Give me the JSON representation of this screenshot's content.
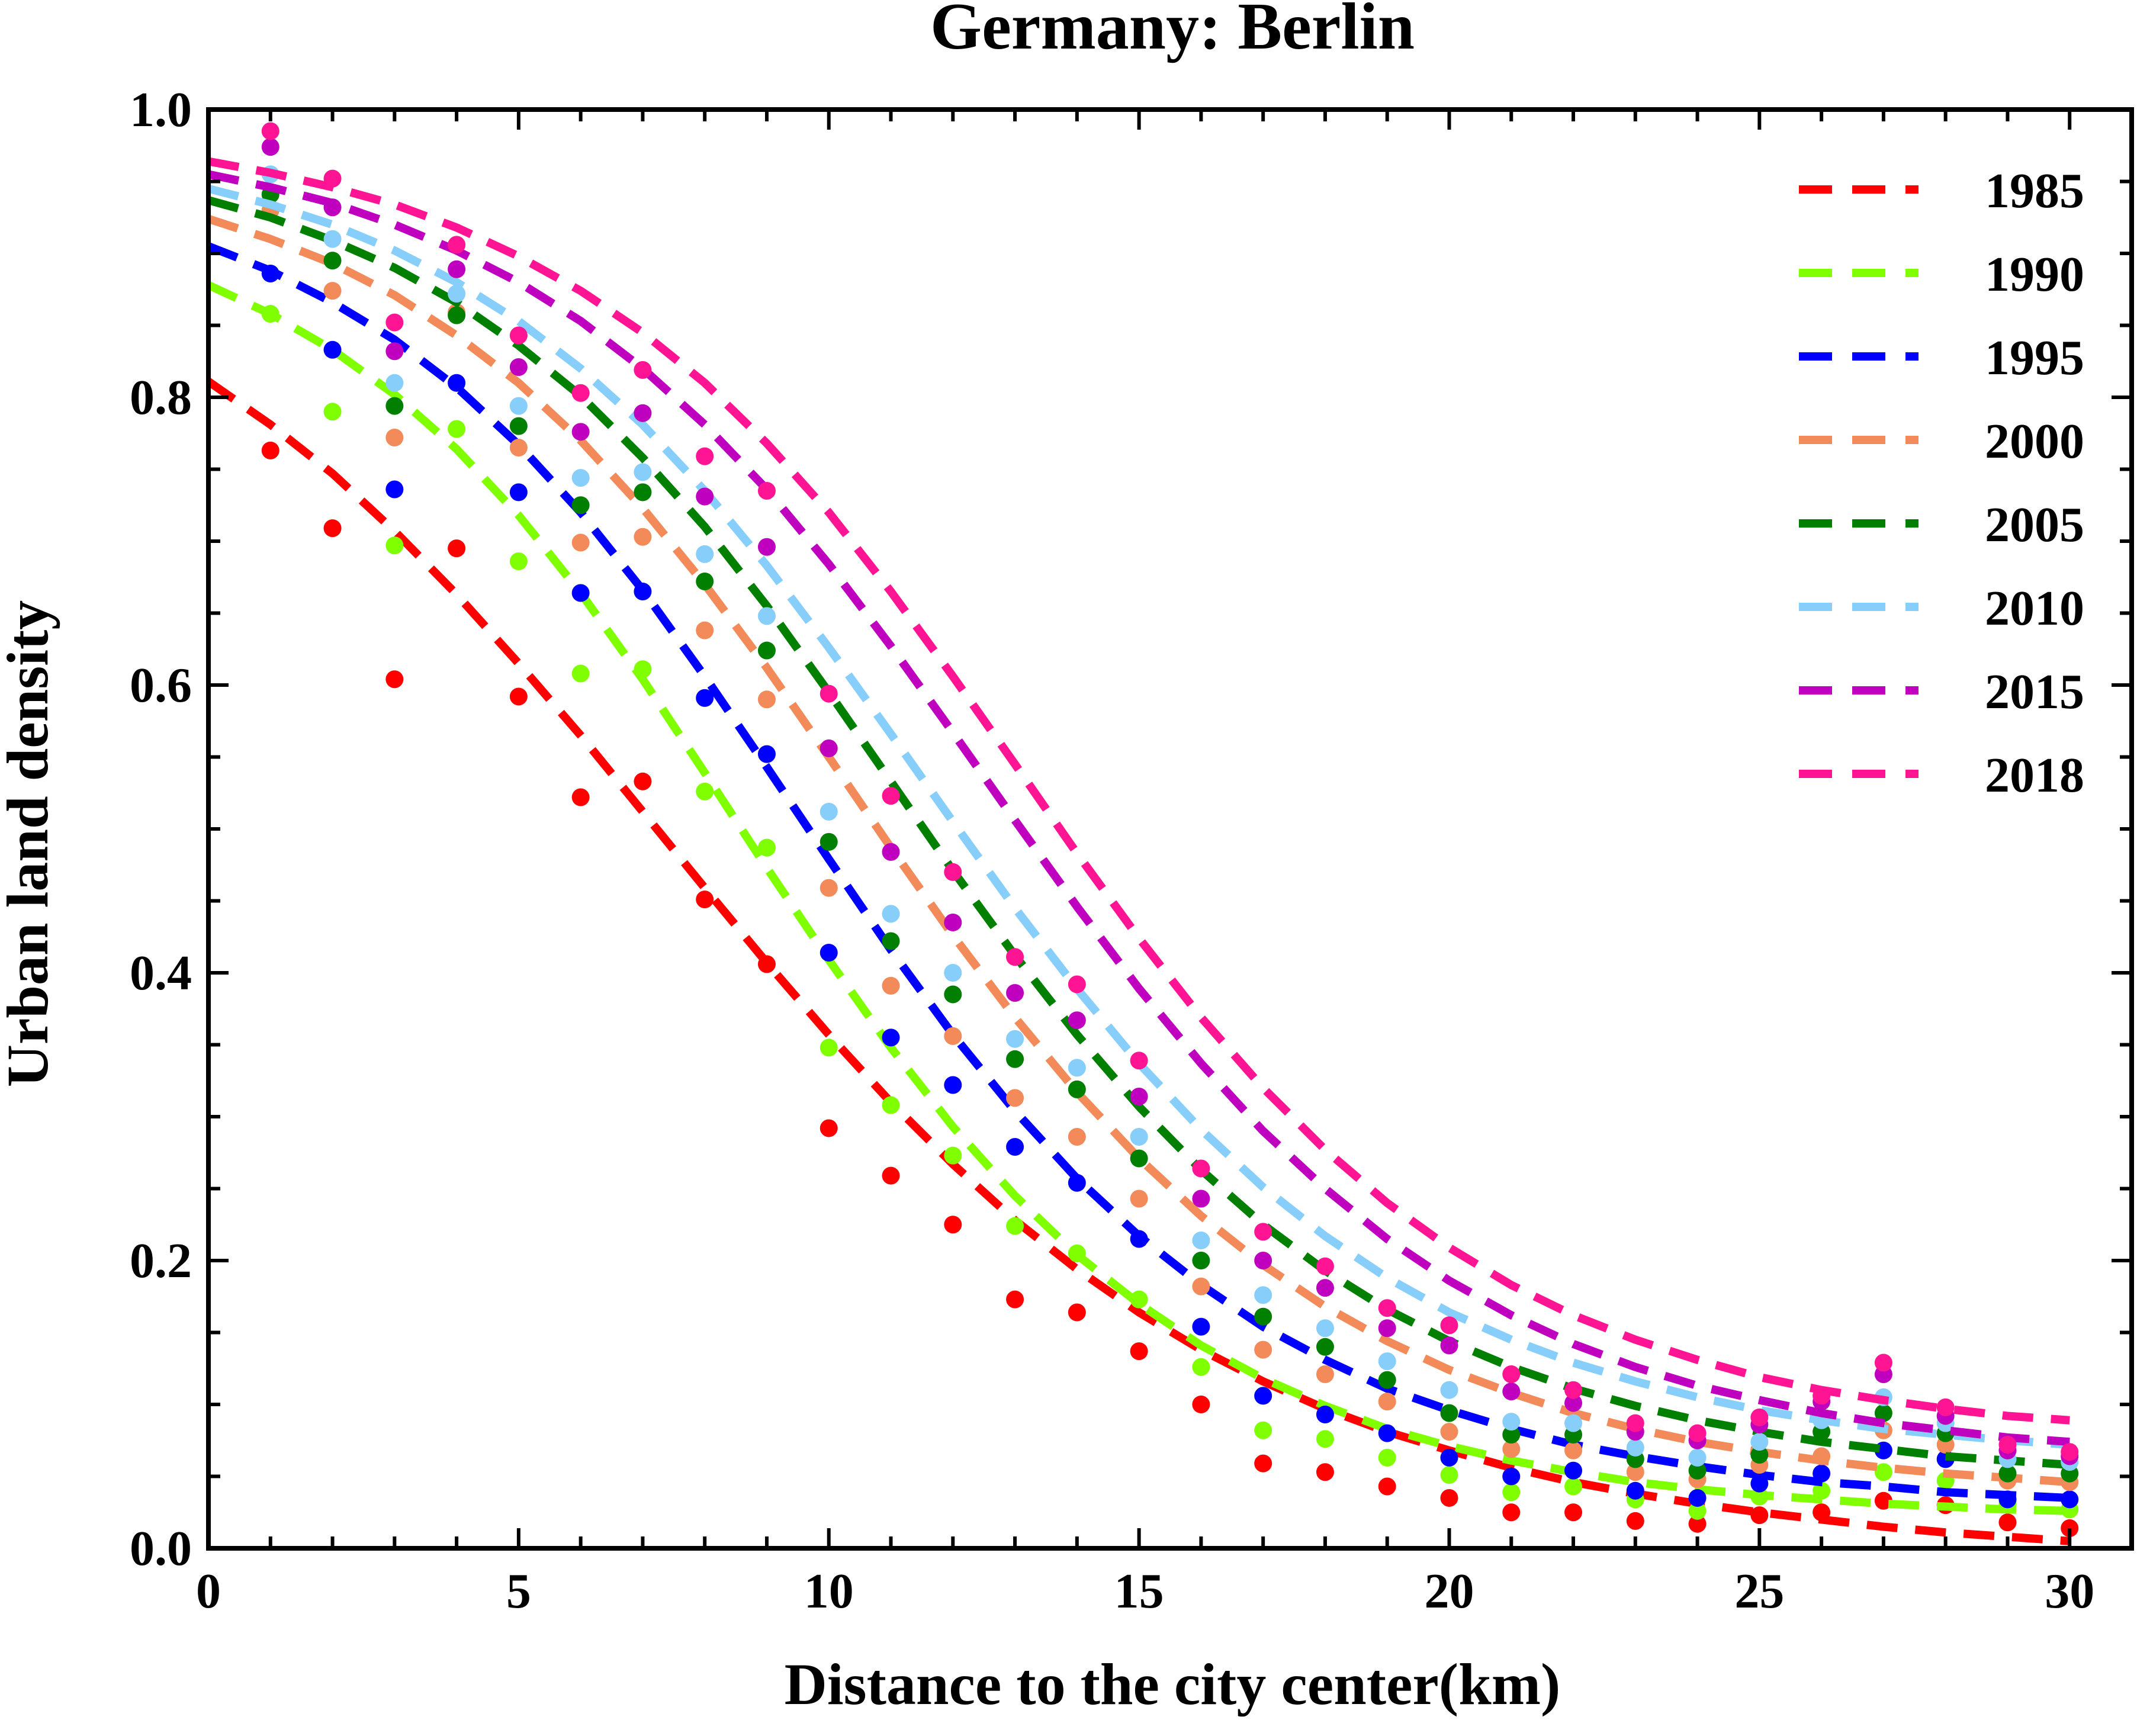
{
  "chart_data": {
    "type": "scatter",
    "title": "Germany: Berlin",
    "xlabel": "Distance to the city center(km)",
    "ylabel": "Urban land density",
    "xlim": [
      0,
      31
    ],
    "ylim": [
      0,
      1.0
    ],
    "xticks": [
      0,
      5,
      10,
      15,
      20,
      25,
      30
    ],
    "xtick_labels": [
      "0",
      "5",
      "10",
      "15",
      "20",
      "25",
      "30"
    ],
    "yticks": [
      0.0,
      0.2,
      0.4,
      0.6,
      0.8,
      1.0
    ],
    "ytick_labels": [
      "0.0",
      "0.2",
      "0.4",
      "0.6",
      "0.8",
      "1.0"
    ],
    "grid": false,
    "legend_position": "top-right",
    "x": [
      1,
      2,
      3,
      4,
      5,
      6,
      7,
      8,
      9,
      10,
      11,
      12,
      13,
      14,
      15,
      16,
      17,
      18,
      19,
      20,
      21,
      22,
      23,
      24,
      25,
      26,
      27,
      28,
      29,
      30
    ],
    "series": [
      {
        "name": "1985",
        "color": "#ff0000",
        "points": [
          0.763,
          0.709,
          0.604,
          0.695,
          0.592,
          0.522,
          0.533,
          0.451,
          0.406,
          0.292,
          0.259,
          0.225,
          0.173,
          0.164,
          0.137,
          0.1,
          0.059,
          0.053,
          0.043,
          0.035,
          0.025,
          0.025,
          0.019,
          0.017,
          0.023,
          0.025,
          0.033,
          0.03,
          0.018,
          0.014
        ],
        "fit": [
          0.811,
          0.781,
          0.747,
          0.707,
          0.663,
          0.615,
          0.565,
          0.512,
          0.459,
          0.407,
          0.357,
          0.31,
          0.267,
          0.228,
          0.194,
          0.164,
          0.138,
          0.116,
          0.097,
          0.081,
          0.068,
          0.056,
          0.046,
          0.038,
          0.031,
          0.025,
          0.02,
          0.015,
          0.011,
          0.008,
          0.005
        ]
      },
      {
        "name": "1990",
        "color": "#80ff00",
        "points": [
          0.858,
          0.79,
          0.697,
          0.778,
          0.686,
          0.608,
          0.611,
          0.526,
          0.487,
          0.348,
          0.308,
          0.273,
          0.224,
          0.205,
          0.173,
          0.126,
          0.082,
          0.076,
          0.063,
          0.051,
          0.039,
          0.043,
          0.034,
          0.026,
          0.036,
          0.04,
          0.053,
          0.047,
          0.031,
          0.027
        ],
        "fit": [
          0.878,
          0.858,
          0.833,
          0.802,
          0.764,
          0.718,
          0.664,
          0.604,
          0.539,
          0.473,
          0.409,
          0.348,
          0.293,
          0.245,
          0.204,
          0.17,
          0.141,
          0.118,
          0.099,
          0.083,
          0.071,
          0.061,
          0.053,
          0.046,
          0.041,
          0.037,
          0.034,
          0.031,
          0.029,
          0.027,
          0.026
        ]
      },
      {
        "name": "1995",
        "color": "#0000ff",
        "points": [
          0.886,
          0.833,
          0.736,
          0.81,
          0.734,
          0.664,
          0.665,
          0.591,
          0.552,
          0.414,
          0.355,
          0.322,
          0.279,
          0.254,
          0.215,
          0.154,
          0.106,
          0.093,
          0.08,
          0.063,
          0.05,
          0.054,
          0.04,
          0.035,
          0.045,
          0.052,
          0.068,
          0.062,
          0.034,
          0.034
        ],
        "fit": [
          0.905,
          0.888,
          0.866,
          0.84,
          0.807,
          0.767,
          0.72,
          0.666,
          0.606,
          0.543,
          0.479,
          0.416,
          0.357,
          0.304,
          0.257,
          0.217,
          0.183,
          0.154,
          0.131,
          0.111,
          0.096,
          0.083,
          0.072,
          0.064,
          0.057,
          0.051,
          0.046,
          0.043,
          0.039,
          0.037,
          0.035
        ]
      },
      {
        "name": "2000",
        "color": "#f28a5a",
        "points": [
          0.93,
          0.874,
          0.772,
          0.859,
          0.765,
          0.699,
          0.703,
          0.638,
          0.59,
          0.459,
          0.391,
          0.356,
          0.313,
          0.286,
          0.243,
          0.182,
          0.138,
          0.121,
          0.102,
          0.081,
          0.069,
          0.068,
          0.053,
          0.048,
          0.058,
          0.064,
          0.082,
          0.072,
          0.047,
          0.046
        ],
        "fit": [
          0.924,
          0.91,
          0.893,
          0.871,
          0.843,
          0.81,
          0.77,
          0.723,
          0.67,
          0.612,
          0.55,
          0.487,
          0.426,
          0.369,
          0.317,
          0.271,
          0.231,
          0.197,
          0.168,
          0.144,
          0.124,
          0.108,
          0.094,
          0.083,
          0.074,
          0.067,
          0.061,
          0.056,
          0.052,
          0.049,
          0.046
        ]
      },
      {
        "name": "2005",
        "color": "#007f00",
        "points": [
          0.941,
          0.895,
          0.794,
          0.857,
          0.78,
          0.725,
          0.734,
          0.672,
          0.624,
          0.491,
          0.422,
          0.385,
          0.34,
          0.319,
          0.271,
          0.2,
          0.161,
          0.14,
          0.117,
          0.094,
          0.079,
          0.079,
          0.062,
          0.054,
          0.065,
          0.081,
          0.094,
          0.08,
          0.052,
          0.052
        ],
        "fit": [
          0.937,
          0.925,
          0.909,
          0.89,
          0.866,
          0.836,
          0.801,
          0.758,
          0.71,
          0.655,
          0.595,
          0.533,
          0.471,
          0.412,
          0.357,
          0.307,
          0.263,
          0.225,
          0.193,
          0.166,
          0.144,
          0.126,
          0.111,
          0.099,
          0.089,
          0.081,
          0.074,
          0.069,
          0.064,
          0.061,
          0.058
        ]
      },
      {
        "name": "2010",
        "color": "#87cefa",
        "points": [
          0.955,
          0.91,
          0.81,
          0.872,
          0.794,
          0.744,
          0.748,
          0.691,
          0.648,
          0.512,
          0.441,
          0.4,
          0.354,
          0.334,
          0.286,
          0.214,
          0.176,
          0.153,
          0.13,
          0.11,
          0.088,
          0.087,
          0.07,
          0.063,
          0.074,
          0.089,
          0.105,
          0.087,
          0.062,
          0.06
        ],
        "fit": [
          0.945,
          0.934,
          0.92,
          0.902,
          0.88,
          0.853,
          0.82,
          0.781,
          0.735,
          0.683,
          0.626,
          0.566,
          0.505,
          0.445,
          0.389,
          0.337,
          0.291,
          0.251,
          0.217,
          0.188,
          0.164,
          0.145,
          0.129,
          0.116,
          0.105,
          0.096,
          0.089,
          0.083,
          0.079,
          0.075,
          0.072
        ]
      },
      {
        "name": "2015",
        "color": "#bf00bf",
        "points": [
          0.974,
          0.932,
          0.832,
          0.889,
          0.821,
          0.776,
          0.789,
          0.731,
          0.696,
          0.556,
          0.484,
          0.435,
          0.386,
          0.367,
          0.314,
          0.243,
          0.2,
          0.181,
          0.153,
          0.141,
          0.109,
          0.101,
          0.081,
          0.075,
          0.086,
          0.102,
          0.121,
          0.092,
          0.068,
          0.064
        ],
        "fit": [
          0.955,
          0.946,
          0.935,
          0.92,
          0.902,
          0.88,
          0.853,
          0.82,
          0.781,
          0.736,
          0.684,
          0.627,
          0.567,
          0.506,
          0.446,
          0.389,
          0.337,
          0.29,
          0.25,
          0.215,
          0.186,
          0.162,
          0.142,
          0.126,
          0.113,
          0.103,
          0.094,
          0.087,
          0.082,
          0.077,
          0.074
        ]
      },
      {
        "name": "2018",
        "color": "#ff1493",
        "points": [
          0.985,
          0.952,
          0.852,
          0.906,
          0.843,
          0.803,
          0.819,
          0.759,
          0.735,
          0.594,
          0.523,
          0.47,
          0.411,
          0.392,
          0.339,
          0.264,
          0.22,
          0.196,
          0.167,
          0.155,
          0.121,
          0.11,
          0.087,
          0.08,
          0.091,
          0.106,
          0.129,
          0.098,
          0.072,
          0.067
        ],
        "fit": [
          0.964,
          0.956,
          0.946,
          0.934,
          0.918,
          0.898,
          0.874,
          0.845,
          0.81,
          0.768,
          0.72,
          0.665,
          0.606,
          0.545,
          0.483,
          0.424,
          0.369,
          0.32,
          0.277,
          0.24,
          0.209,
          0.183,
          0.162,
          0.145,
          0.131,
          0.119,
          0.11,
          0.103,
          0.097,
          0.092,
          0.089
        ]
      }
    ]
  }
}
